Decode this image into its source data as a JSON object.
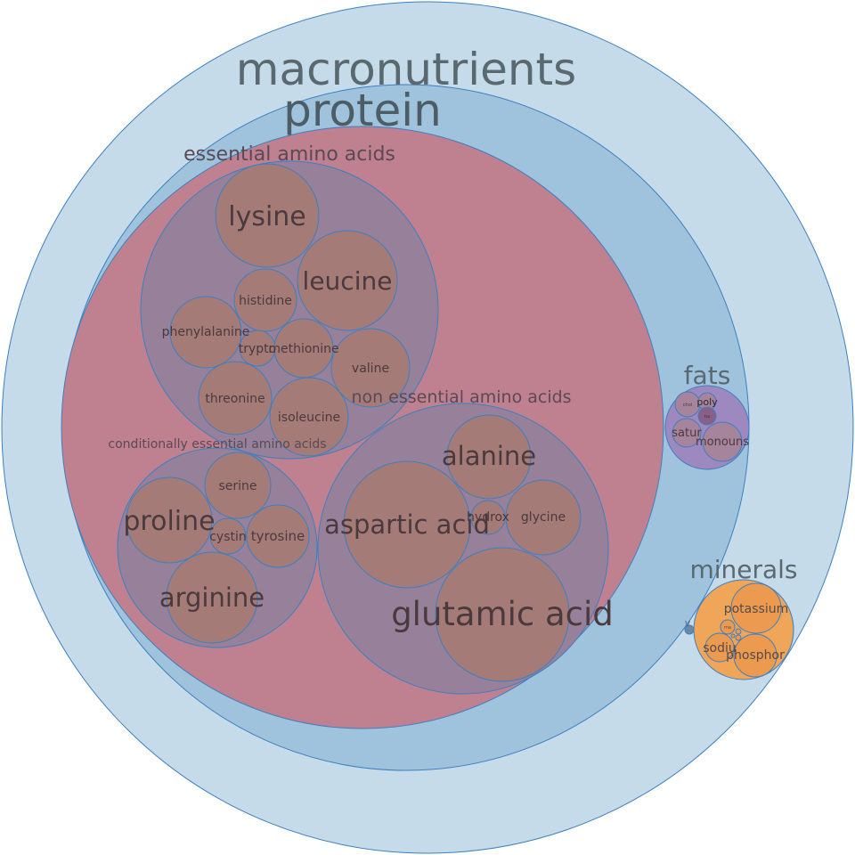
{
  "diagram": {
    "root": "macronutrients",
    "protein": {
      "title": "protein",
      "essential": {
        "title": "essential amino acids",
        "items": [
          "lysine",
          "leucine",
          "histidine",
          "phenylalanine",
          "trypto",
          "methionine",
          "valine",
          "threonine",
          "isoleucine"
        ]
      },
      "conditional": {
        "title": "conditionally essential amino acids",
        "items": [
          "serine",
          "proline",
          "cystin",
          "tyrosine",
          "arginine"
        ]
      },
      "nonessential": {
        "title": "non essential amino acids",
        "items": [
          "alanine",
          "aspartic acid",
          "hydrox",
          "glycine",
          "glutamic acid"
        ]
      }
    },
    "fats": {
      "title": "fats",
      "items": [
        "chol",
        "poly",
        "satur",
        "monouns"
      ],
      "small": "tra"
    },
    "minerals": {
      "title": "minerals",
      "items": [
        "potassium",
        "sodiu",
        "phosphor"
      ],
      "tiny": "ma"
    },
    "vitamins_label": "v"
  },
  "colors": {
    "outer": "#c6dbea",
    "protein": "#9fc3dd",
    "amino_acids": "#bf8090",
    "amino_group": "#96809a",
    "amino_leaf": "#a57b78",
    "fats": "#9e88c0",
    "minerals": "#f0a658",
    "stroke": "#3e7fc0"
  }
}
